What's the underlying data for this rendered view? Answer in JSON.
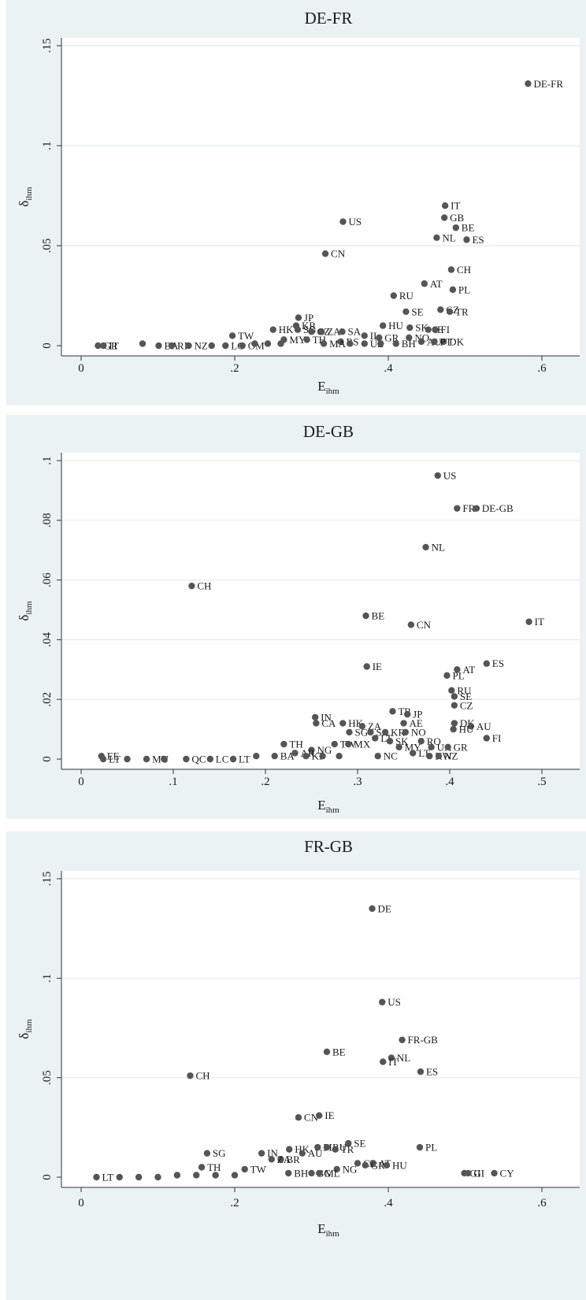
{
  "chart_data": [
    {
      "type": "scatter",
      "title": "DE-FR",
      "xlabel": {
        "main": "E",
        "sub": "ihm"
      },
      "ylabel": {
        "main": "δ",
        "sub": "ihm"
      },
      "xlim": [
        0,
        0.6
      ],
      "ylim": [
        0,
        0.15
      ],
      "xticks": [
        0,
        0.2,
        0.4,
        0.6
      ],
      "xtick_labels": [
        "0",
        ".2",
        ".4",
        ".6"
      ],
      "yticks": [
        0,
        0.05,
        0.1,
        0.15
      ],
      "ytick_labels": [
        "0",
        ".05",
        ".1",
        ".15"
      ],
      "grid": true,
      "points": [
        {
          "x": 0.582,
          "y": 0.131,
          "label": "DE-FR"
        },
        {
          "x": 0.341,
          "y": 0.062,
          "label": "US"
        },
        {
          "x": 0.474,
          "y": 0.07,
          "label": "IT"
        },
        {
          "x": 0.473,
          "y": 0.064,
          "label": "GB"
        },
        {
          "x": 0.488,
          "y": 0.059,
          "label": "BE"
        },
        {
          "x": 0.463,
          "y": 0.054,
          "label": "NL"
        },
        {
          "x": 0.502,
          "y": 0.053,
          "label": "ES"
        },
        {
          "x": 0.318,
          "y": 0.046,
          "label": "CN"
        },
        {
          "x": 0.482,
          "y": 0.038,
          "label": "CH"
        },
        {
          "x": 0.447,
          "y": 0.031,
          "label": "AT"
        },
        {
          "x": 0.484,
          "y": 0.028,
          "label": "PL"
        },
        {
          "x": 0.407,
          "y": 0.025,
          "label": "RU"
        },
        {
          "x": 0.468,
          "y": 0.018,
          "label": "CZ"
        },
        {
          "x": 0.48,
          "y": 0.017,
          "label": "TR"
        },
        {
          "x": 0.423,
          "y": 0.017,
          "label": "SE"
        },
        {
          "x": 0.283,
          "y": 0.014,
          "label": "JP"
        },
        {
          "x": 0.393,
          "y": 0.01,
          "label": "HU"
        },
        {
          "x": 0.28,
          "y": 0.01,
          "label": "KR"
        },
        {
          "x": 0.25,
          "y": 0.008,
          "label": "HK"
        },
        {
          "x": 0.282,
          "y": 0.008,
          "label": "SG"
        },
        {
          "x": 0.3,
          "y": 0.007,
          "label": "CZ"
        },
        {
          "x": 0.313,
          "y": 0.007,
          "label": "ZA"
        },
        {
          "x": 0.34,
          "y": 0.007,
          "label": "SA"
        },
        {
          "x": 0.428,
          "y": 0.009,
          "label": "SK"
        },
        {
          "x": 0.452,
          "y": 0.008,
          "label": "IE"
        },
        {
          "x": 0.461,
          "y": 0.008,
          "label": "FI"
        },
        {
          "x": 0.197,
          "y": 0.005,
          "label": "TW"
        },
        {
          "x": 0.369,
          "y": 0.005,
          "label": "IL"
        },
        {
          "x": 0.388,
          "y": 0.004,
          "label": "GR"
        },
        {
          "x": 0.427,
          "y": 0.004,
          "label": "NO"
        },
        {
          "x": 0.264,
          "y": 0.003,
          "label": "MY"
        },
        {
          "x": 0.294,
          "y": 0.003,
          "label": "TH"
        },
        {
          "x": 0.338,
          "y": 0.002,
          "label": "RS"
        },
        {
          "x": 0.369,
          "y": 0.001,
          "label": "UZ"
        },
        {
          "x": 0.41,
          "y": 0.001,
          "label": "BH"
        },
        {
          "x": 0.443,
          "y": 0.002,
          "label": "AU"
        },
        {
          "x": 0.472,
          "y": 0.002,
          "label": "DK"
        },
        {
          "x": 0.46,
          "y": 0.002,
          "label": "PT"
        },
        {
          "x": 0.022,
          "y": 0.0,
          "label": "GR"
        },
        {
          "x": 0.029,
          "y": 0.0,
          "label": "IT"
        },
        {
          "x": 0.08,
          "y": 0.001,
          "label": ""
        },
        {
          "x": 0.101,
          "y": 0.0,
          "label": "BA"
        },
        {
          "x": 0.118,
          "y": 0.0,
          "label": "RI"
        },
        {
          "x": 0.14,
          "y": 0.0,
          "label": "NZ"
        },
        {
          "x": 0.17,
          "y": 0.0,
          "label": ""
        },
        {
          "x": 0.188,
          "y": 0.0,
          "label": "LC"
        },
        {
          "x": 0.21,
          "y": 0.0,
          "label": "OM"
        },
        {
          "x": 0.226,
          "y": 0.001,
          "label": ""
        },
        {
          "x": 0.243,
          "y": 0.001,
          "label": ""
        },
        {
          "x": 0.26,
          "y": 0.001,
          "label": ""
        },
        {
          "x": 0.316,
          "y": 0.001,
          "label": "MA"
        },
        {
          "x": 0.35,
          "y": 0.001,
          "label": ""
        },
        {
          "x": 0.39,
          "y": 0.001,
          "label": ""
        }
      ]
    },
    {
      "type": "scatter",
      "title": "DE-GB",
      "xlabel": {
        "main": "E",
        "sub": "ihm"
      },
      "ylabel": {
        "main": "δ",
        "sub": "ihm"
      },
      "xlim": [
        0,
        0.5
      ],
      "ylim": [
        0,
        0.1
      ],
      "xticks": [
        0,
        0.1,
        0.2,
        0.3,
        0.4,
        0.5
      ],
      "xtick_labels": [
        "0",
        ".1",
        ".2",
        ".3",
        ".4",
        ".5"
      ],
      "yticks": [
        0,
        0.02,
        0.04,
        0.06,
        0.08,
        0.1
      ],
      "ytick_labels": [
        "0",
        ".02",
        ".04",
        ".06",
        ".08",
        ".1"
      ],
      "grid": true,
      "points": [
        {
          "x": 0.387,
          "y": 0.095,
          "label": "US"
        },
        {
          "x": 0.408,
          "y": 0.084,
          "label": "FR"
        },
        {
          "x": 0.429,
          "y": 0.084,
          "label": "DE-GB"
        },
        {
          "x": 0.374,
          "y": 0.071,
          "label": "NL"
        },
        {
          "x": 0.12,
          "y": 0.058,
          "label": "CH"
        },
        {
          "x": 0.309,
          "y": 0.048,
          "label": "BE"
        },
        {
          "x": 0.358,
          "y": 0.045,
          "label": "CN"
        },
        {
          "x": 0.486,
          "y": 0.046,
          "label": "IT"
        },
        {
          "x": 0.44,
          "y": 0.032,
          "label": "ES"
        },
        {
          "x": 0.31,
          "y": 0.031,
          "label": "IE"
        },
        {
          "x": 0.408,
          "y": 0.03,
          "label": "AT"
        },
        {
          "x": 0.397,
          "y": 0.028,
          "label": "PL"
        },
        {
          "x": 0.402,
          "y": 0.023,
          "label": "RU"
        },
        {
          "x": 0.405,
          "y": 0.021,
          "label": "SE"
        },
        {
          "x": 0.405,
          "y": 0.018,
          "label": "CZ"
        },
        {
          "x": 0.338,
          "y": 0.016,
          "label": "TR"
        },
        {
          "x": 0.354,
          "y": 0.015,
          "label": "JP"
        },
        {
          "x": 0.254,
          "y": 0.014,
          "label": "IN"
        },
        {
          "x": 0.255,
          "y": 0.012,
          "label": "CA"
        },
        {
          "x": 0.284,
          "y": 0.012,
          "label": "HK"
        },
        {
          "x": 0.305,
          "y": 0.011,
          "label": "ZA"
        },
        {
          "x": 0.35,
          "y": 0.012,
          "label": "AE"
        },
        {
          "x": 0.405,
          "y": 0.012,
          "label": "DK"
        },
        {
          "x": 0.423,
          "y": 0.011,
          "label": "AU"
        },
        {
          "x": 0.291,
          "y": 0.009,
          "label": "SG"
        },
        {
          "x": 0.314,
          "y": 0.009,
          "label": "SA"
        },
        {
          "x": 0.33,
          "y": 0.009,
          "label": "KR"
        },
        {
          "x": 0.352,
          "y": 0.009,
          "label": "NO"
        },
        {
          "x": 0.404,
          "y": 0.01,
          "label": "HU"
        },
        {
          "x": 0.44,
          "y": 0.007,
          "label": "FI"
        },
        {
          "x": 0.319,
          "y": 0.007,
          "label": "LT"
        },
        {
          "x": 0.335,
          "y": 0.006,
          "label": "SK"
        },
        {
          "x": 0.369,
          "y": 0.006,
          "label": "RO"
        },
        {
          "x": 0.22,
          "y": 0.005,
          "label": "TH"
        },
        {
          "x": 0.275,
          "y": 0.005,
          "label": "TW"
        },
        {
          "x": 0.29,
          "y": 0.005,
          "label": "MX"
        },
        {
          "x": 0.345,
          "y": 0.004,
          "label": "MY"
        },
        {
          "x": 0.38,
          "y": 0.004,
          "label": "UA"
        },
        {
          "x": 0.398,
          "y": 0.004,
          "label": "GR"
        },
        {
          "x": 0.25,
          "y": 0.003,
          "label": "NG"
        },
        {
          "x": 0.232,
          "y": 0.002,
          "label": "AR"
        },
        {
          "x": 0.36,
          "y": 0.002,
          "label": "LT"
        },
        {
          "x": 0.378,
          "y": 0.001,
          "label": "KW"
        },
        {
          "x": 0.388,
          "y": 0.001,
          "label": "NZ"
        },
        {
          "x": 0.322,
          "y": 0.001,
          "label": "NC"
        },
        {
          "x": 0.022,
          "y": 0.001,
          "label": "EE"
        },
        {
          "x": 0.024,
          "y": 0.0,
          "label": "LT"
        },
        {
          "x": 0.05,
          "y": 0.0,
          "label": ""
        },
        {
          "x": 0.071,
          "y": 0.0,
          "label": "MU"
        },
        {
          "x": 0.09,
          "y": 0.0,
          "label": ""
        },
        {
          "x": 0.114,
          "y": 0.0,
          "label": "QC"
        },
        {
          "x": 0.14,
          "y": 0.0,
          "label": "LC"
        },
        {
          "x": 0.165,
          "y": 0.0,
          "label": "LT"
        },
        {
          "x": 0.19,
          "y": 0.001,
          "label": ""
        },
        {
          "x": 0.21,
          "y": 0.001,
          "label": "BA"
        },
        {
          "x": 0.244,
          "y": 0.001,
          "label": "KI"
        },
        {
          "x": 0.262,
          "y": 0.001,
          "label": ""
        },
        {
          "x": 0.28,
          "y": 0.001,
          "label": ""
        }
      ]
    },
    {
      "type": "scatter",
      "title": "FR-GB",
      "xlabel": {
        "main": "E",
        "sub": "ihm"
      },
      "ylabel": {
        "main": "δ",
        "sub": "ihm"
      },
      "xlim": [
        0,
        0.6
      ],
      "ylim": [
        0,
        0.15
      ],
      "xticks": [
        0,
        0.2,
        0.4,
        0.6
      ],
      "xtick_labels": [
        "0",
        ".2",
        ".4",
        ".6"
      ],
      "yticks": [
        0,
        0.05,
        0.1,
        0.15
      ],
      "ytick_labels": [
        "0",
        ".05",
        ".1",
        ".15"
      ],
      "grid": true,
      "points": [
        {
          "x": 0.379,
          "y": 0.135,
          "label": "DE"
        },
        {
          "x": 0.392,
          "y": 0.088,
          "label": "US"
        },
        {
          "x": 0.418,
          "y": 0.069,
          "label": "FR-GB"
        },
        {
          "x": 0.32,
          "y": 0.063,
          "label": "BE"
        },
        {
          "x": 0.404,
          "y": 0.06,
          "label": "NL"
        },
        {
          "x": 0.393,
          "y": 0.058,
          "label": "IT"
        },
        {
          "x": 0.442,
          "y": 0.053,
          "label": "ES"
        },
        {
          "x": 0.142,
          "y": 0.051,
          "label": "CH"
        },
        {
          "x": 0.283,
          "y": 0.03,
          "label": "CN"
        },
        {
          "x": 0.31,
          "y": 0.031,
          "label": "IE"
        },
        {
          "x": 0.348,
          "y": 0.017,
          "label": "SE"
        },
        {
          "x": 0.441,
          "y": 0.015,
          "label": "PL"
        },
        {
          "x": 0.164,
          "y": 0.012,
          "label": "SG"
        },
        {
          "x": 0.271,
          "y": 0.014,
          "label": "HK"
        },
        {
          "x": 0.308,
          "y": 0.015,
          "label": "PL"
        },
        {
          "x": 0.32,
          "y": 0.015,
          "label": "RU"
        },
        {
          "x": 0.331,
          "y": 0.014,
          "label": "TR"
        },
        {
          "x": 0.235,
          "y": 0.012,
          "label": "IN"
        },
        {
          "x": 0.288,
          "y": 0.012,
          "label": "AU"
        },
        {
          "x": 0.26,
          "y": 0.009,
          "label": "BR"
        },
        {
          "x": 0.248,
          "y": 0.009,
          "label": "ZA"
        },
        {
          "x": 0.36,
          "y": 0.007,
          "label": "CZ"
        },
        {
          "x": 0.38,
          "y": 0.007,
          "label": "AT"
        },
        {
          "x": 0.398,
          "y": 0.006,
          "label": "HU"
        },
        {
          "x": 0.37,
          "y": 0.006,
          "label": "GR"
        },
        {
          "x": 0.333,
          "y": 0.004,
          "label": "NG"
        },
        {
          "x": 0.157,
          "y": 0.005,
          "label": "TH"
        },
        {
          "x": 0.213,
          "y": 0.004,
          "label": "TW"
        },
        {
          "x": 0.3,
          "y": 0.002,
          "label": "BG"
        },
        {
          "x": 0.31,
          "y": 0.002,
          "label": "ML"
        },
        {
          "x": 0.499,
          "y": 0.002,
          "label": "GI"
        },
        {
          "x": 0.504,
          "y": 0.002,
          "label": "GI"
        },
        {
          "x": 0.538,
          "y": 0.002,
          "label": "CY"
        },
        {
          "x": 0.02,
          "y": 0.0,
          "label": "LT"
        },
        {
          "x": 0.05,
          "y": 0.0,
          "label": ""
        },
        {
          "x": 0.075,
          "y": 0.0,
          "label": ""
        },
        {
          "x": 0.1,
          "y": 0.0,
          "label": ""
        },
        {
          "x": 0.125,
          "y": 0.001,
          "label": ""
        },
        {
          "x": 0.15,
          "y": 0.001,
          "label": ""
        },
        {
          "x": 0.175,
          "y": 0.001,
          "label": ""
        },
        {
          "x": 0.2,
          "y": 0.001,
          "label": ""
        },
        {
          "x": 0.27,
          "y": 0.002,
          "label": "BH"
        }
      ]
    }
  ],
  "colors": {
    "panel_background": "#eaf2f3",
    "plot_background": "#ffffff",
    "marker": "#555555",
    "gridline": "#e4ecee"
  }
}
